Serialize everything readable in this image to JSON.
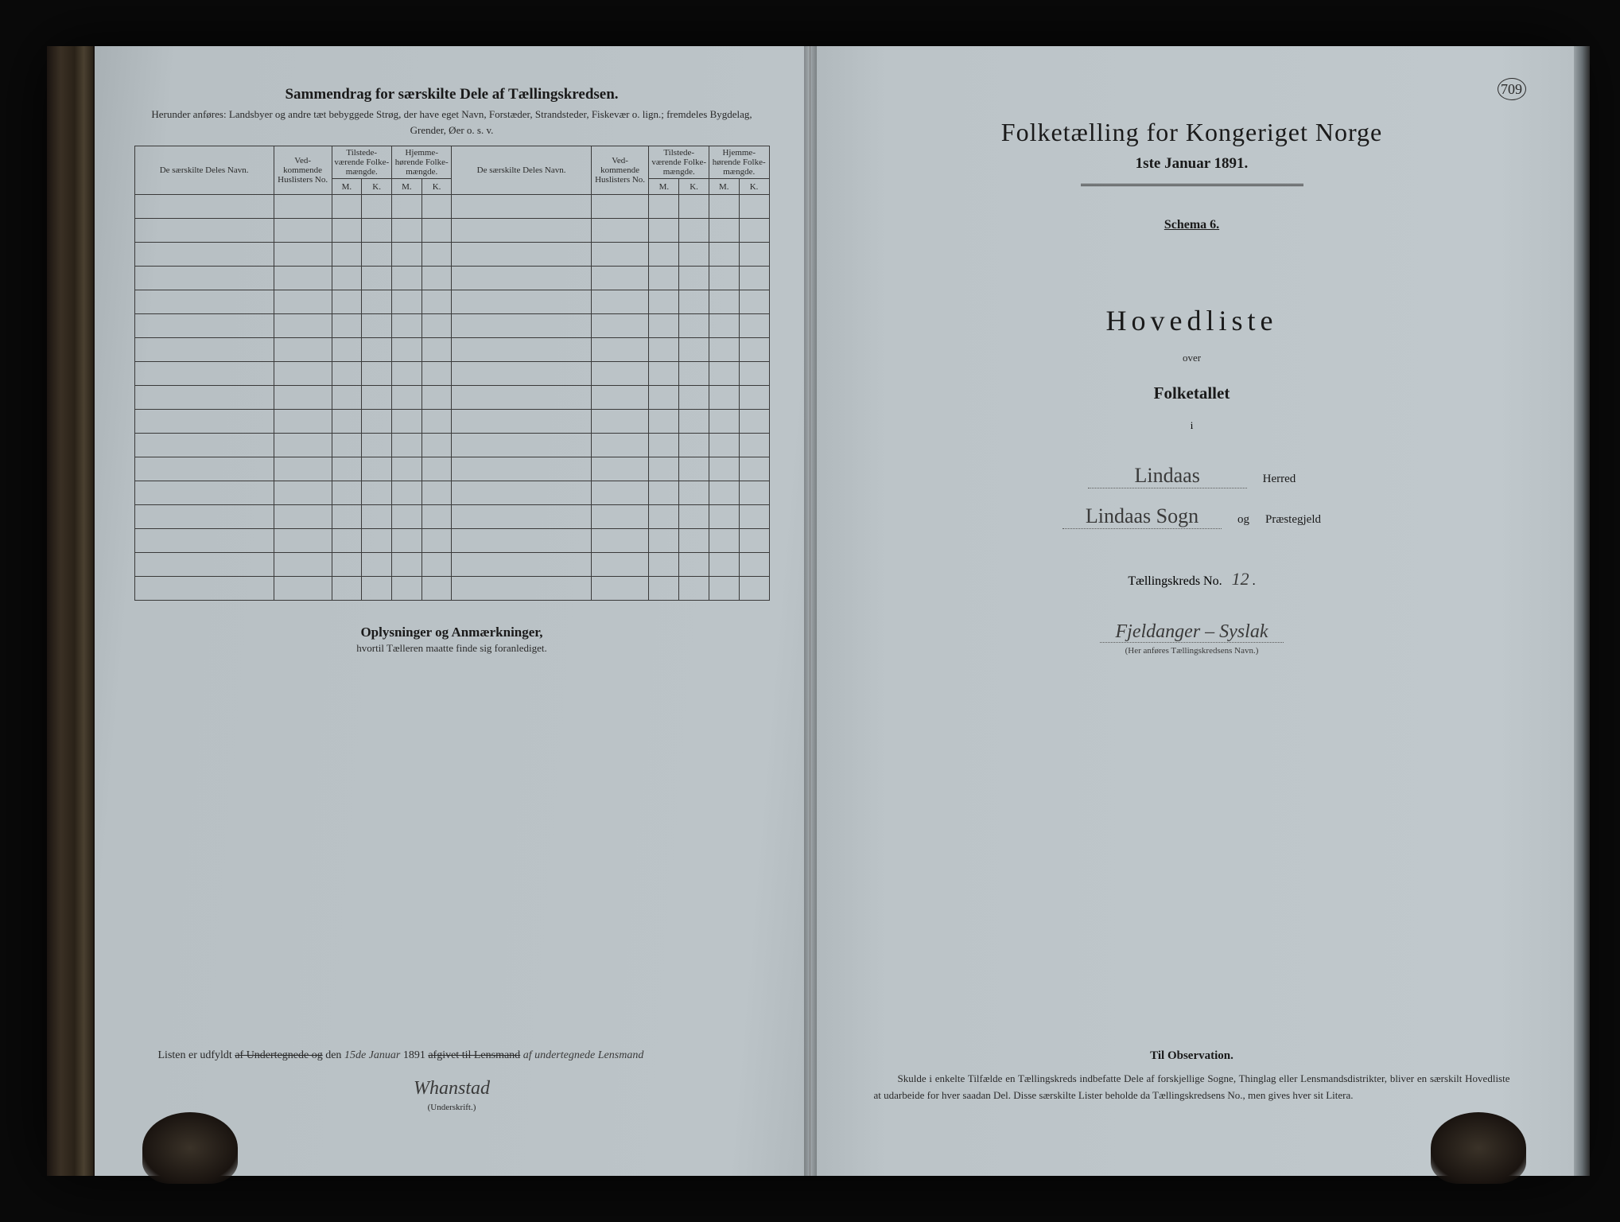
{
  "page_number": "709",
  "colors": {
    "background": "#0a0a0a",
    "paper": "#bcc4c8",
    "ink": "#1a1a1a",
    "rule": "#3a3a3a"
  },
  "left_page": {
    "title": "Sammendrag for særskilte Dele af Tællingskredsen.",
    "subtitle_prefix": "Herunder anføres:",
    "subtitle": "Landsbyer og andre tæt bebyggede Strøg, der have eget Navn, Forstæder, Strandsteder, Fiskevær o. lign.; fremdeles Bygdelag, Grender, Øer o. s. v.",
    "table": {
      "headers": {
        "navn": "De særskilte Deles Navn.",
        "no": "Ved-kommende Huslisters No.",
        "tilstede": "Tilstede-værende Folke-mængde.",
        "hjemme": "Hjemme-hørende Folke-mængde.",
        "m": "M.",
        "k": "K."
      },
      "row_count": 17
    },
    "notes_title": "Oplysninger og Anmærkninger,",
    "notes_sub": "hvortil Tælleren maatte finde sig foranlediget.",
    "signature": {
      "prefix": "Listen er udfyldt",
      "struck1": "af Undertegnede og",
      "den": "den",
      "date_hw": "15de Januar",
      "year": "1891",
      "struck2": "afgivet til Lensmand",
      "trailing_hw": "af undertegnede Lensmand",
      "name_hw": "Whanstad",
      "caption": "(Underskrift.)"
    }
  },
  "right_page": {
    "title": "Folketælling for Kongeriget Norge",
    "date": "1ste Januar 1891.",
    "schema": "Schema 6.",
    "hovedliste": "Hovedliste",
    "over": "over",
    "folketallet": "Folketallet",
    "i": "i",
    "herred_hw": "Lindaas",
    "herred_label": "Herred",
    "sogn_hw": "Lindaas Sogn",
    "sogn_conj": "og",
    "sogn_label": "Præstegjeld",
    "kreds_label": "Tællingskreds No.",
    "kreds_no": "12",
    "kreds_name_hw": "Fjeldanger – Syslak",
    "kreds_caption": "(Her anføres Tællingskredsens Navn.)",
    "observation": {
      "title": "Til Observation.",
      "body": "Skulde i enkelte Tilfælde en Tællingskreds indbefatte Dele af forskjellige Sogne, Thinglag eller Lensmandsdistrikter, bliver en særskilt Hovedliste at udarbeide for hver saadan Del. Disse særskilte Lister beholde da Tællingskredsens No., men gives hver sit Litera."
    }
  }
}
